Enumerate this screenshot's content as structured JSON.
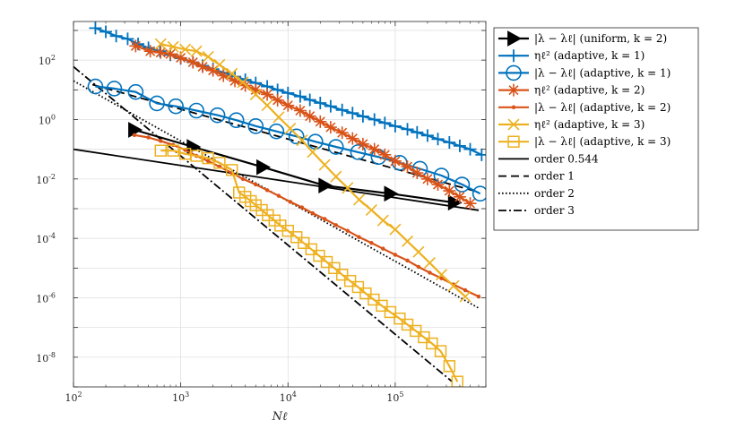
{
  "chart_data": {
    "type": "line",
    "xscale": "log",
    "yscale": "log",
    "xlim": [
      100,
      700000
    ],
    "ylim": [
      1e-09,
      2000
    ],
    "xlabel": "Nℓ",
    "ylabel": "",
    "grid": true,
    "legend_position": "outside-right",
    "x_ticks": [
      {
        "base": "10",
        "exp": "2"
      },
      {
        "base": "10",
        "exp": "3"
      },
      {
        "base": "10",
        "exp": "4"
      },
      {
        "base": "10",
        "exp": "5"
      }
    ],
    "y_ticks": [
      {
        "base": "10",
        "exp": "-8"
      },
      {
        "base": "10",
        "exp": "-6"
      },
      {
        "base": "10",
        "exp": "-4"
      },
      {
        "base": "10",
        "exp": "-2"
      },
      {
        "base": "10",
        "exp": "0"
      },
      {
        "base": "10",
        "exp": "2"
      }
    ],
    "colors": {
      "black": "#000000",
      "blue": "#0072BD",
      "orange": "#D95319",
      "yellow": "#EDB120"
    },
    "series": [
      {
        "name": "|λ − λℓ| (uniform, k = 2)",
        "color": "#000000",
        "marker": "triangle-right",
        "line": "solid",
        "x": [
          370,
          1300,
          5800,
          22000,
          90000,
          355000
        ],
        "y": [
          0.45,
          0.12,
          0.025,
          0.006,
          0.0032,
          0.0016
        ]
      },
      {
        "name": "ηℓ² (adaptive, k = 1)",
        "color": "#0072BD",
        "marker": "plus",
        "line": "solid",
        "x": [
          160,
          200,
          250,
          320,
          400,
          500,
          640,
          800,
          1000,
          1300,
          1600,
          2000,
          2500,
          3200,
          4000,
          5000,
          6400,
          8000,
          10000,
          13000,
          16000,
          20000,
          25000,
          32000,
          40000,
          50000,
          64000,
          80000,
          100000,
          130000,
          160000,
          200000,
          250000,
          320000,
          400000,
          500000,
          640000
        ],
        "y": [
          1200,
          900,
          650,
          520,
          350,
          260,
          200,
          150,
          115,
          85,
          65,
          50,
          38,
          28,
          22,
          17,
          13,
          10,
          7.8,
          6,
          4.6,
          3.6,
          2.8,
          2.1,
          1.65,
          1.28,
          1.0,
          0.77,
          0.6,
          0.47,
          0.37,
          0.29,
          0.22,
          0.17,
          0.13,
          0.1,
          0.065
        ]
      },
      {
        "name": "|λ − λℓ| (adaptive, k = 1)",
        "color": "#0072BD",
        "marker": "circle",
        "line": "solid",
        "x": [
          160,
          240,
          380,
          600,
          900,
          1400,
          2200,
          3300,
          5000,
          7800,
          12000,
          18000,
          28000,
          45000,
          70000,
          110000,
          170000,
          270000,
          420000,
          620000
        ],
        "y": [
          13,
          11,
          8.5,
          3.5,
          2.8,
          2.0,
          1.4,
          0.95,
          0.6,
          0.4,
          0.27,
          0.18,
          0.12,
          0.08,
          0.055,
          0.035,
          0.022,
          0.013,
          0.0065,
          0.0032
        ]
      },
      {
        "name": "ηℓ² (adaptive, k = 2)",
        "color": "#D95319",
        "marker": "asterisk",
        "line": "solid",
        "x": [
          380,
          520,
          650,
          800,
          1000,
          1300,
          1600,
          2000,
          2500,
          3200,
          4000,
          5000,
          6400,
          8000,
          10000,
          13000,
          16000,
          20000,
          25000,
          32000,
          40000,
          50000,
          64000,
          80000,
          100000,
          130000,
          160000,
          200000,
          250000,
          320000,
          400000,
          500000
        ],
        "y": [
          300,
          200,
          180,
          160,
          120,
          85,
          60,
          45,
          30,
          20,
          14,
          10,
          7,
          4.5,
          3,
          2,
          1.3,
          0.85,
          0.55,
          0.36,
          0.23,
          0.15,
          0.1,
          0.065,
          0.04,
          0.026,
          0.016,
          0.01,
          0.0065,
          0.004,
          0.0025,
          0.0015
        ]
      },
      {
        "name": "|λ − λℓ| (adaptive, k = 2)",
        "color": "#D95319",
        "marker": "dot",
        "line": "solid",
        "x": [
          370,
          500,
          650,
          850,
          1100,
          1400,
          1800,
          2300,
          3000,
          3800,
          5000,
          6400,
          8200,
          10500,
          13500,
          17000,
          22000,
          28000,
          36000,
          46000,
          60000,
          77000,
          100000,
          130000,
          165000,
          210000,
          270000,
          350000,
          450000,
          600000
        ],
        "y": [
          0.3,
          0.25,
          0.19,
          0.14,
          0.095,
          0.06,
          0.04,
          0.026,
          0.016,
          0.01,
          0.0065,
          0.0042,
          0.0027,
          0.0017,
          0.0011,
          0.0007,
          0.00045,
          0.00028,
          0.00018,
          0.00011,
          7e-05,
          4.5e-05,
          2.8e-05,
          1.8e-05,
          1.1e-05,
          7e-06,
          4.5e-06,
          2.8e-06,
          1.8e-06,
          1.1e-06
        ]
      },
      {
        "name": "ηℓ² (adaptive, k = 3)",
        "color": "#EDB120",
        "marker": "x",
        "line": "solid",
        "x": [
          650,
          850,
          1100,
          1400,
          1800,
          2300,
          3000,
          3800,
          5000,
          6400,
          8200,
          10500,
          13500,
          17000,
          22000,
          28000,
          36000,
          46000,
          60000,
          77000,
          100000,
          130000,
          165000,
          210000,
          270000,
          350000,
          450000
        ],
        "y": [
          350,
          280,
          230,
          200,
          130,
          70,
          35,
          18,
          7,
          3,
          1.2,
          0.5,
          0.2,
          0.08,
          0.03,
          0.012,
          0.005,
          0.002,
          0.0009,
          0.0004,
          0.0002,
          8e-05,
          3.5e-05,
          1.5e-05,
          6e-06,
          2.5e-06,
          1.1e-06
        ]
      },
      {
        "name": "|λ − λℓ| (adaptive, k = 3)",
        "color": "#EDB120",
        "marker": "square",
        "line": "solid",
        "x": [
          650,
          850,
          1100,
          1400,
          1800,
          2300,
          3000,
          3500,
          4000,
          4500,
          5000,
          5700,
          6500,
          7500,
          8500,
          10000,
          12000,
          14000,
          16500,
          19500,
          23000,
          27000,
          32000,
          38000,
          45000,
          53000,
          63000,
          75000,
          90000,
          110000,
          130000,
          155000,
          185000,
          220000,
          265000,
          320000,
          380000
        ],
        "y": [
          0.09,
          0.09,
          0.07,
          0.06,
          0.05,
          0.035,
          0.02,
          0.0035,
          0.0025,
          0.0018,
          0.0013,
          0.0009,
          0.0006,
          0.0004,
          0.00027,
          0.00018,
          0.00011,
          7e-05,
          4.3e-05,
          2.6e-05,
          1.6e-05,
          1e-05,
          6e-06,
          3.7e-06,
          2.3e-06,
          1.4e-06,
          8.7e-07,
          5.4e-07,
          3.3e-07,
          2e-07,
          1.25e-07,
          7.7e-08,
          4.7e-08,
          2.9e-08,
          1.6e-08,
          5e-09,
          1.5e-09
        ]
      },
      {
        "name": "order 0.544",
        "color": "#000000",
        "marker": "none",
        "line": "solid",
        "x": [
          100,
          600000
        ],
        "y": [
          0.1,
          0.00088
        ]
      },
      {
        "name": "order 1",
        "color": "#000000",
        "marker": "none",
        "line": "dashed",
        "x": [
          150,
          600000
        ],
        "y": [
          15,
          0.0036
        ]
      },
      {
        "name": "order 2",
        "color": "#000000",
        "marker": "none",
        "line": "dotted",
        "x": [
          100,
          600000
        ],
        "y": [
          20,
          4.5e-07
        ]
      },
      {
        "name": "order 3",
        "color": "#000000",
        "marker": "none",
        "line": "dashdot",
        "x": [
          100,
          340000
        ],
        "y": [
          60,
          1.5e-09
        ]
      }
    ]
  }
}
